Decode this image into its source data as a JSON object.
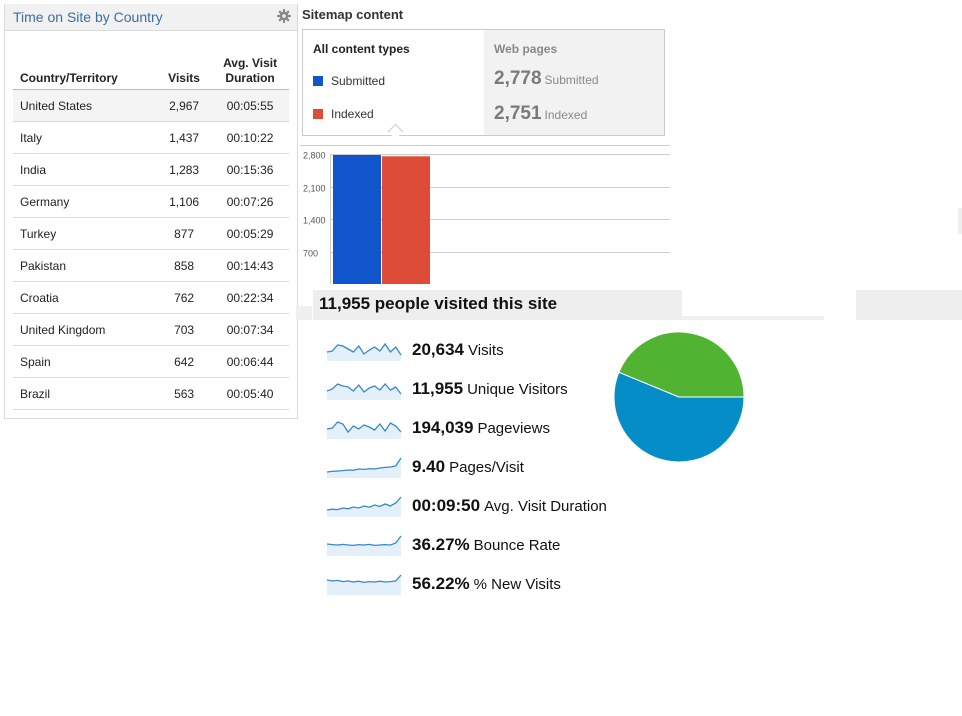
{
  "time_on_site": {
    "title": "Time on Site by Country",
    "columns": [
      "Country/Territory",
      "Visits",
      "Avg. Visit\nDuration"
    ],
    "rows": [
      {
        "country": "United States",
        "visits": "2,967",
        "duration": "00:05:55"
      },
      {
        "country": "Italy",
        "visits": "1,437",
        "duration": "00:10:22"
      },
      {
        "country": "India",
        "visits": "1,283",
        "duration": "00:15:36"
      },
      {
        "country": "Germany",
        "visits": "1,106",
        "duration": "00:07:26"
      },
      {
        "country": "Turkey",
        "visits": "877",
        "duration": "00:05:29"
      },
      {
        "country": "Pakistan",
        "visits": "858",
        "duration": "00:14:43"
      },
      {
        "country": "Croatia",
        "visits": "762",
        "duration": "00:22:34"
      },
      {
        "country": "United Kingdom",
        "visits": "703",
        "duration": "00:07:34"
      },
      {
        "country": "Spain",
        "visits": "642",
        "duration": "00:06:44"
      },
      {
        "country": "Brazil",
        "visits": "563",
        "duration": "00:05:40"
      }
    ],
    "icons": {
      "settings": "gear-icon"
    }
  },
  "sitemap": {
    "title": "Sitemap content",
    "legend": {
      "heading": "All content types",
      "items": [
        {
          "label": "Submitted",
          "color": "#1155cc"
        },
        {
          "label": "Indexed",
          "color": "#dd4b39"
        }
      ]
    },
    "web_pages": {
      "heading": "Web pages",
      "submitted_value": "2,778",
      "submitted_label": "Submitted",
      "indexed_value": "2,751",
      "indexed_label": "Indexed"
    }
  },
  "chart_data": [
    {
      "type": "bar",
      "categories": [
        "Web pages"
      ],
      "series": [
        {
          "name": "Submitted",
          "values": [
            2778
          ],
          "color": "#1155cc"
        },
        {
          "name": "Indexed",
          "values": [
            2751
          ],
          "color": "#dd4b39"
        }
      ],
      "yticks": [
        700,
        1400,
        2100,
        2800
      ],
      "ytick_labels": [
        "700",
        "1,400",
        "2,100",
        "2,800"
      ],
      "ylim": [
        0,
        2800
      ],
      "grid": true
    },
    {
      "type": "pie",
      "slices": [
        {
          "value": 56.22,
          "color": "#058dc7"
        },
        {
          "value": 43.78,
          "color": "#50b432"
        }
      ]
    }
  ],
  "visitors": {
    "title": "11,955 people visited this site",
    "metrics": [
      {
        "value": "20,634",
        "label": "Visits",
        "spark": [
          0.6,
          0.55,
          0.25,
          0.3,
          0.45,
          0.6,
          0.3,
          0.7,
          0.5,
          0.35,
          0.55,
          0.2,
          0.6,
          0.35,
          0.75
        ]
      },
      {
        "value": "11,955",
        "label": "Unique Visitors",
        "spark": [
          0.6,
          0.5,
          0.25,
          0.35,
          0.4,
          0.6,
          0.3,
          0.65,
          0.45,
          0.35,
          0.55,
          0.25,
          0.55,
          0.4,
          0.75
        ]
      },
      {
        "value": "194,039",
        "label": "Pageviews",
        "spark": [
          0.55,
          0.5,
          0.2,
          0.3,
          0.7,
          0.4,
          0.55,
          0.35,
          0.45,
          0.6,
          0.3,
          0.65,
          0.25,
          0.4,
          0.7
        ]
      },
      {
        "value": "9.40",
        "label": "Pages/Visit",
        "spark": [
          0.75,
          0.72,
          0.7,
          0.68,
          0.65,
          0.66,
          0.6,
          0.62,
          0.58,
          0.6,
          0.55,
          0.52,
          0.5,
          0.45,
          0.05
        ]
      },
      {
        "value": "00:09:50",
        "label": "Avg. Visit Duration",
        "spark": [
          0.7,
          0.66,
          0.68,
          0.6,
          0.64,
          0.55,
          0.6,
          0.5,
          0.56,
          0.45,
          0.52,
          0.4,
          0.5,
          0.35,
          0.05
        ]
      },
      {
        "value": "36.27%",
        "label": "Bounce Rate",
        "spark": [
          0.45,
          0.48,
          0.5,
          0.47,
          0.5,
          0.52,
          0.48,
          0.5,
          0.47,
          0.52,
          0.5,
          0.48,
          0.5,
          0.4,
          0.05
        ]
      },
      {
        "value": "56.22%",
        "label": "% New Visits",
        "spark": [
          0.3,
          0.35,
          0.32,
          0.38,
          0.35,
          0.4,
          0.36,
          0.42,
          0.38,
          0.4,
          0.36,
          0.4,
          0.38,
          0.35,
          0.05
        ]
      }
    ]
  }
}
